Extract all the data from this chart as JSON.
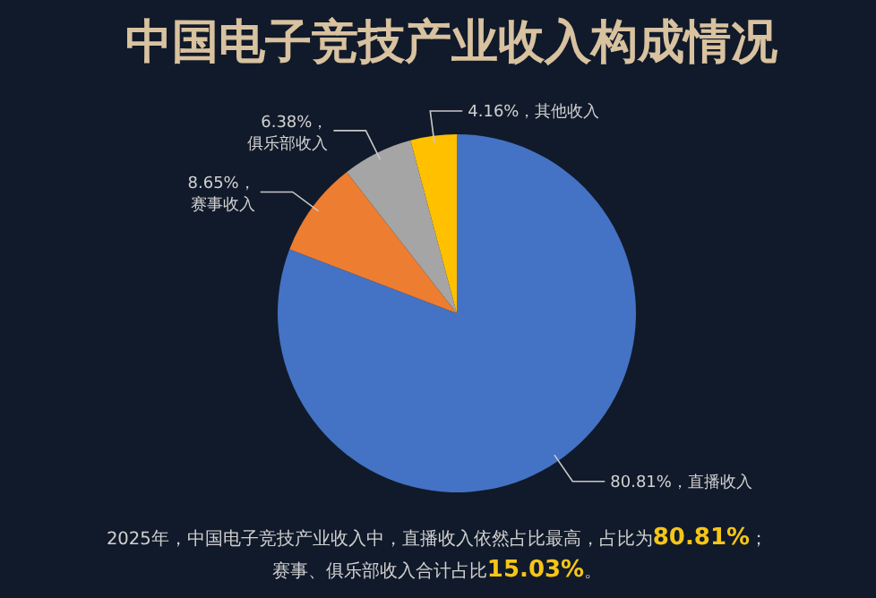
{
  "chart_data": {
    "type": "pie",
    "title": "中国电子竞技产业收入构成情况",
    "categories": [
      "直播收入",
      "赛事收入",
      "俱乐部收入",
      "其他收入"
    ],
    "values": [
      80.81,
      8.65,
      6.38,
      4.16
    ],
    "colors": [
      "#4472c4",
      "#ed7d31",
      "#a5a5a5",
      "#ffc000"
    ],
    "value_labels": [
      "80.81%，",
      "8.65%，",
      "6.38%，",
      "4.16%，"
    ],
    "annotations": [
      "2025年，中国电子竞技产业收入中，直播收入依然占比最高，占比为80.81%；",
      "赛事、俱乐部收入合计占比15.03%。"
    ]
  }
}
